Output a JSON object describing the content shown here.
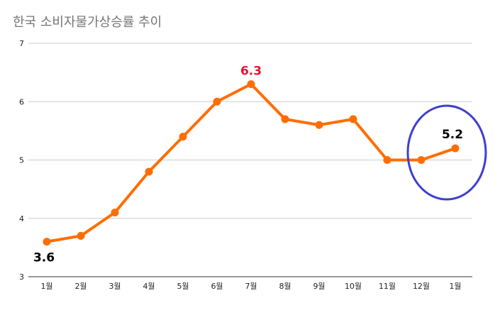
{
  "chart_data": {
    "type": "line",
    "title": "한국 소비자물가상승률 추이",
    "categories": [
      "1월",
      "2월",
      "3월",
      "4월",
      "5월",
      "6월",
      "7월",
      "8월",
      "9월",
      "10월",
      "11월",
      "12월",
      "1월"
    ],
    "values": [
      3.6,
      3.7,
      4.1,
      4.8,
      5.4,
      6.0,
      6.3,
      5.7,
      5.6,
      5.7,
      5.0,
      5.0,
      5.2
    ],
    "ylim": [
      3,
      7
    ],
    "yticks": [
      "3",
      "4",
      "5",
      "6",
      "7"
    ],
    "grid": true,
    "legend": "none",
    "line_color": "#ff6d01",
    "annotations": [
      {
        "index": 6,
        "text": "6.3",
        "color": "#e8112d"
      },
      {
        "index": 0,
        "text": "3.6",
        "color": "#000000"
      },
      {
        "index": 12,
        "text": "5.2",
        "color": "#000000"
      }
    ],
    "highlight": {
      "index": 12,
      "shape": "ellipse",
      "color": "#3f3fcf"
    }
  }
}
